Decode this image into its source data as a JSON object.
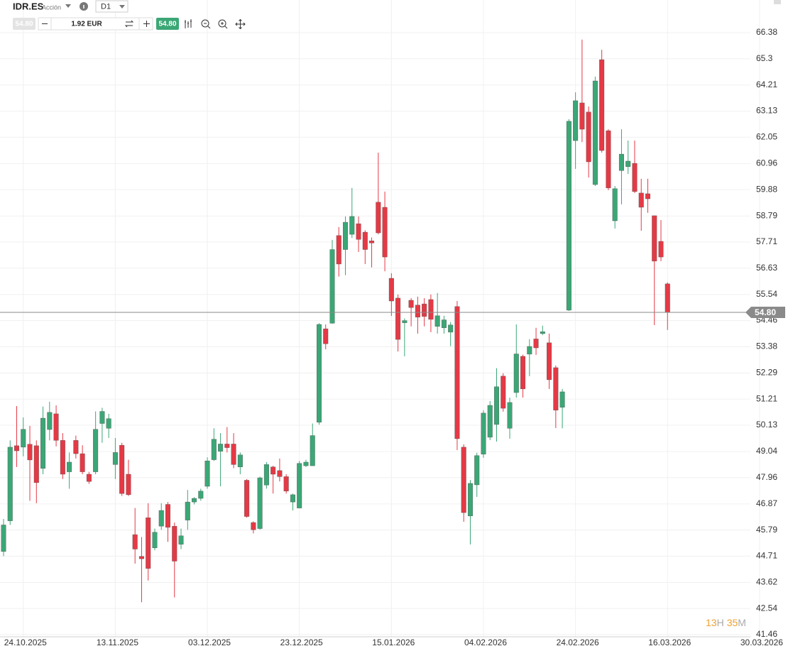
{
  "toolbar": {
    "symbol": "IDR.ES",
    "asset_type": "Acción",
    "timeframe": "D1",
    "sell_price": "54.80",
    "quantity": "1.92 EUR",
    "buy_price": "54.80"
  },
  "timer": {
    "hours": "13",
    "hours_unit": "H",
    "minutes": "35",
    "minutes_unit": "M"
  },
  "chart_data": {
    "type": "candlestick",
    "categories": [
      null,
      null,
      null,
      "24.10.2025",
      null,
      null,
      null,
      null,
      null,
      null,
      null,
      null,
      null,
      null,
      null,
      null,
      null,
      "13.11.2025",
      null,
      null,
      null,
      null,
      null,
      null,
      null,
      null,
      null,
      null,
      null,
      null,
      null,
      "03.12.2025",
      null,
      null,
      null,
      null,
      null,
      null,
      null,
      null,
      null,
      null,
      null,
      null,
      null,
      "23.12.2025",
      null,
      null,
      null,
      null,
      null,
      null,
      null,
      null,
      null,
      null,
      null,
      null,
      null,
      "15.01.2026",
      null,
      null,
      null,
      null,
      null,
      null,
      null,
      null,
      null,
      null,
      null,
      null,
      null,
      "04.02.2026",
      null,
      null,
      null,
      null,
      null,
      null,
      null,
      null,
      null,
      null,
      null,
      null,
      null,
      "24.02.2026",
      null,
      null,
      null,
      null,
      null,
      null,
      null,
      null,
      null,
      null,
      null,
      null,
      null,
      "16.03.2026",
      null,
      null,
      null,
      null,
      null,
      null,
      null,
      null,
      null,
      null,
      null,
      null,
      null,
      "30.03.2026"
    ],
    "open": [
      44.9,
      46.17,
      49.28,
      49.22,
      49.34,
      49.28,
      48.34,
      49.95,
      50.6,
      49.5,
      48.2,
      49.5,
      48.95,
      48.1,
      48.2,
      50.2,
      50.0,
      48.5,
      49.3,
      48.1,
      45.6,
      44.7,
      46.3,
      45.05,
      45.95,
      46.85,
      45.95,
      45.2,
      46.2,
      46.95,
      47.1,
      47.6,
      48.7,
      49.05,
      49.35,
      49.35,
      48.4,
      47.85,
      46.1,
      45.85,
      47.65,
      48.4,
      48.25,
      48.0,
      46.95,
      46.7,
      48.45,
      48.45,
      50.25,
      54.12,
      54.35,
      57.98,
      57.4,
      58.03,
      58.47,
      58.12,
      57.76,
      59.36,
      59.15,
      56.21,
      55.39,
      54.37,
      55.3,
      55.1,
      55.15,
      55.33,
      54.22,
      54.16,
      53.98,
      55.04,
      49.22,
      46.37,
      47.66,
      48.93,
      49.63,
      50.16,
      52.16,
      50.0,
      51.48,
      52.98,
      53.07,
      53.7,
      53.92,
      53.54,
      52.51,
      50.87,
      54.89,
      61.91,
      63.47,
      63.09,
      60.09,
      65.26,
      62.32,
      58.59,
      60.67,
      60.83,
      60.97,
      59.74,
      59.71,
      58.8,
      57.74,
      55.98,
      null,
      null,
      null,
      null,
      null,
      null,
      null,
      null,
      null,
      null,
      null,
      null,
      null,
      null
    ],
    "high": [
      46.25,
      49.5,
      50.92,
      50.45,
      50.1,
      49.5,
      50.9,
      51.1,
      50.95,
      49.8,
      49.0,
      49.7,
      49.3,
      48.2,
      50.7,
      50.85,
      50.6,
      49.6,
      49.4,
      48.7,
      46.7,
      45.5,
      46.9,
      45.85,
      46.9,
      46.95,
      46.1,
      45.85,
      47.45,
      47.15,
      47.5,
      48.8,
      50.0,
      49.8,
      50.05,
      49.8,
      49.0,
      47.9,
      46.15,
      48.0,
      48.6,
      48.45,
      48.75,
      48.1,
      47.3,
      48.65,
      48.7,
      50.2,
      54.35,
      54.3,
      57.8,
      58.33,
      58.77,
      59.95,
      58.77,
      58.2,
      57.9,
      61.41,
      59.8,
      56.42,
      55.54,
      54.55,
      55.39,
      55.45,
      55.39,
      55.54,
      55.6,
      54.66,
      54.4,
      55.27,
      49.34,
      47.86,
      48.99,
      50.75,
      51.13,
      52.49,
      52.28,
      51.27,
      54.3,
      53.05,
      53.69,
      54.16,
      54.25,
      53.92,
      52.6,
      51.63,
      62.8,
      63.91,
      66.09,
      63.32,
      64.56,
      65.67,
      62.38,
      60.03,
      62.38,
      61.91,
      61.91,
      60.33,
      60.33,
      58.8,
      58.62,
      56.04,
      null,
      null,
      null,
      null,
      null,
      null,
      null,
      null,
      null,
      null,
      null,
      null,
      null,
      null
    ],
    "low": [
      44.71,
      46.0,
      48.4,
      48.84,
      47.0,
      46.9,
      48.1,
      49.5,
      49.25,
      47.9,
      47.5,
      48.75,
      48.1,
      47.7,
      48.1,
      49.4,
      49.6,
      47.9,
      47.2,
      47.2,
      44.4,
      42.8,
      43.7,
      44.95,
      45.8,
      45.3,
      43.0,
      45.0,
      45.8,
      46.85,
      47.0,
      47.5,
      48.65,
      47.6,
      49.0,
      48.35,
      48.1,
      46.3,
      45.65,
      45.8,
      47.5,
      47.3,
      47.8,
      47.3,
      46.6,
      46.7,
      48.4,
      48.45,
      50.15,
      53.27,
      54.33,
      56.28,
      56.34,
      57.88,
      57.3,
      56.8,
      56.66,
      58.03,
      56.5,
      54.65,
      53.18,
      52.98,
      54.22,
      53.92,
      54.22,
      53.98,
      53.92,
      53.92,
      53.4,
      49.1,
      46.13,
      45.19,
      47.16,
      48.78,
      49.51,
      49.45,
      50.69,
      49.57,
      51.27,
      51.27,
      52.16,
      53.04,
      53.86,
      51.63,
      50.01,
      50.0,
      54.86,
      60.74,
      61.85,
      60.38,
      60.03,
      61.41,
      59.86,
      58.27,
      59.27,
      60.53,
      59.74,
      58.18,
      58.92,
      54.27,
      56.92,
      54.07,
      null,
      null,
      null,
      null,
      null,
      null,
      null,
      null,
      null,
      null,
      null,
      null,
      null,
      null
    ],
    "close": [
      46.0,
      49.22,
      49.07,
      49.96,
      48.69,
      47.75,
      50.42,
      50.66,
      49.5,
      48.1,
      48.6,
      48.95,
      48.2,
      47.8,
      49.96,
      50.7,
      50.4,
      49.0,
      47.3,
      47.25,
      45.0,
      44.6,
      44.2,
      45.7,
      46.6,
      45.9,
      44.5,
      45.55,
      46.95,
      47.1,
      47.4,
      48.65,
      49.55,
      49.35,
      49.2,
      48.5,
      48.9,
      46.35,
      45.8,
      47.95,
      48.5,
      48.1,
      48.0,
      47.4,
      47.25,
      48.55,
      48.6,
      49.7,
      54.3,
      53.5,
      57.4,
      56.8,
      58.53,
      58.77,
      57.82,
      57.4,
      57.67,
      58.09,
      57.09,
      55.27,
      53.68,
      54.46,
      55.0,
      54.6,
      54.63,
      54.51,
      54.66,
      54.49,
      54.28,
      49.57,
      46.51,
      47.72,
      48.87,
      50.63,
      50.95,
      51.72,
      50.83,
      51.07,
      53.08,
      51.63,
      53.39,
      53.33,
      54.0,
      52.01,
      50.75,
      51.51,
      62.71,
      63.56,
      62.38,
      61.03,
      64.38,
      61.5,
      59.95,
      59.92,
      61.35,
      61.06,
      59.8,
      59.15,
      59.5,
      56.92,
      57.09,
      54.8,
      null,
      null,
      null,
      null,
      null,
      null,
      null,
      null,
      null,
      null,
      null,
      null,
      null,
      null
    ],
    "up_color": "#3ba776",
    "down_color": "#e53945",
    "ylim": [
      41.37,
      67.73
    ],
    "yticks": [
      41.46,
      42.54,
      43.62,
      44.71,
      45.79,
      46.87,
      47.96,
      49.04,
      50.13,
      51.21,
      52.29,
      53.38,
      54.46,
      55.54,
      56.63,
      57.71,
      58.79,
      59.88,
      60.96,
      62.05,
      63.13,
      64.21,
      65.3,
      66.38
    ],
    "grid": true,
    "price_line": {
      "value": 54.8,
      "label": "54.80"
    }
  }
}
